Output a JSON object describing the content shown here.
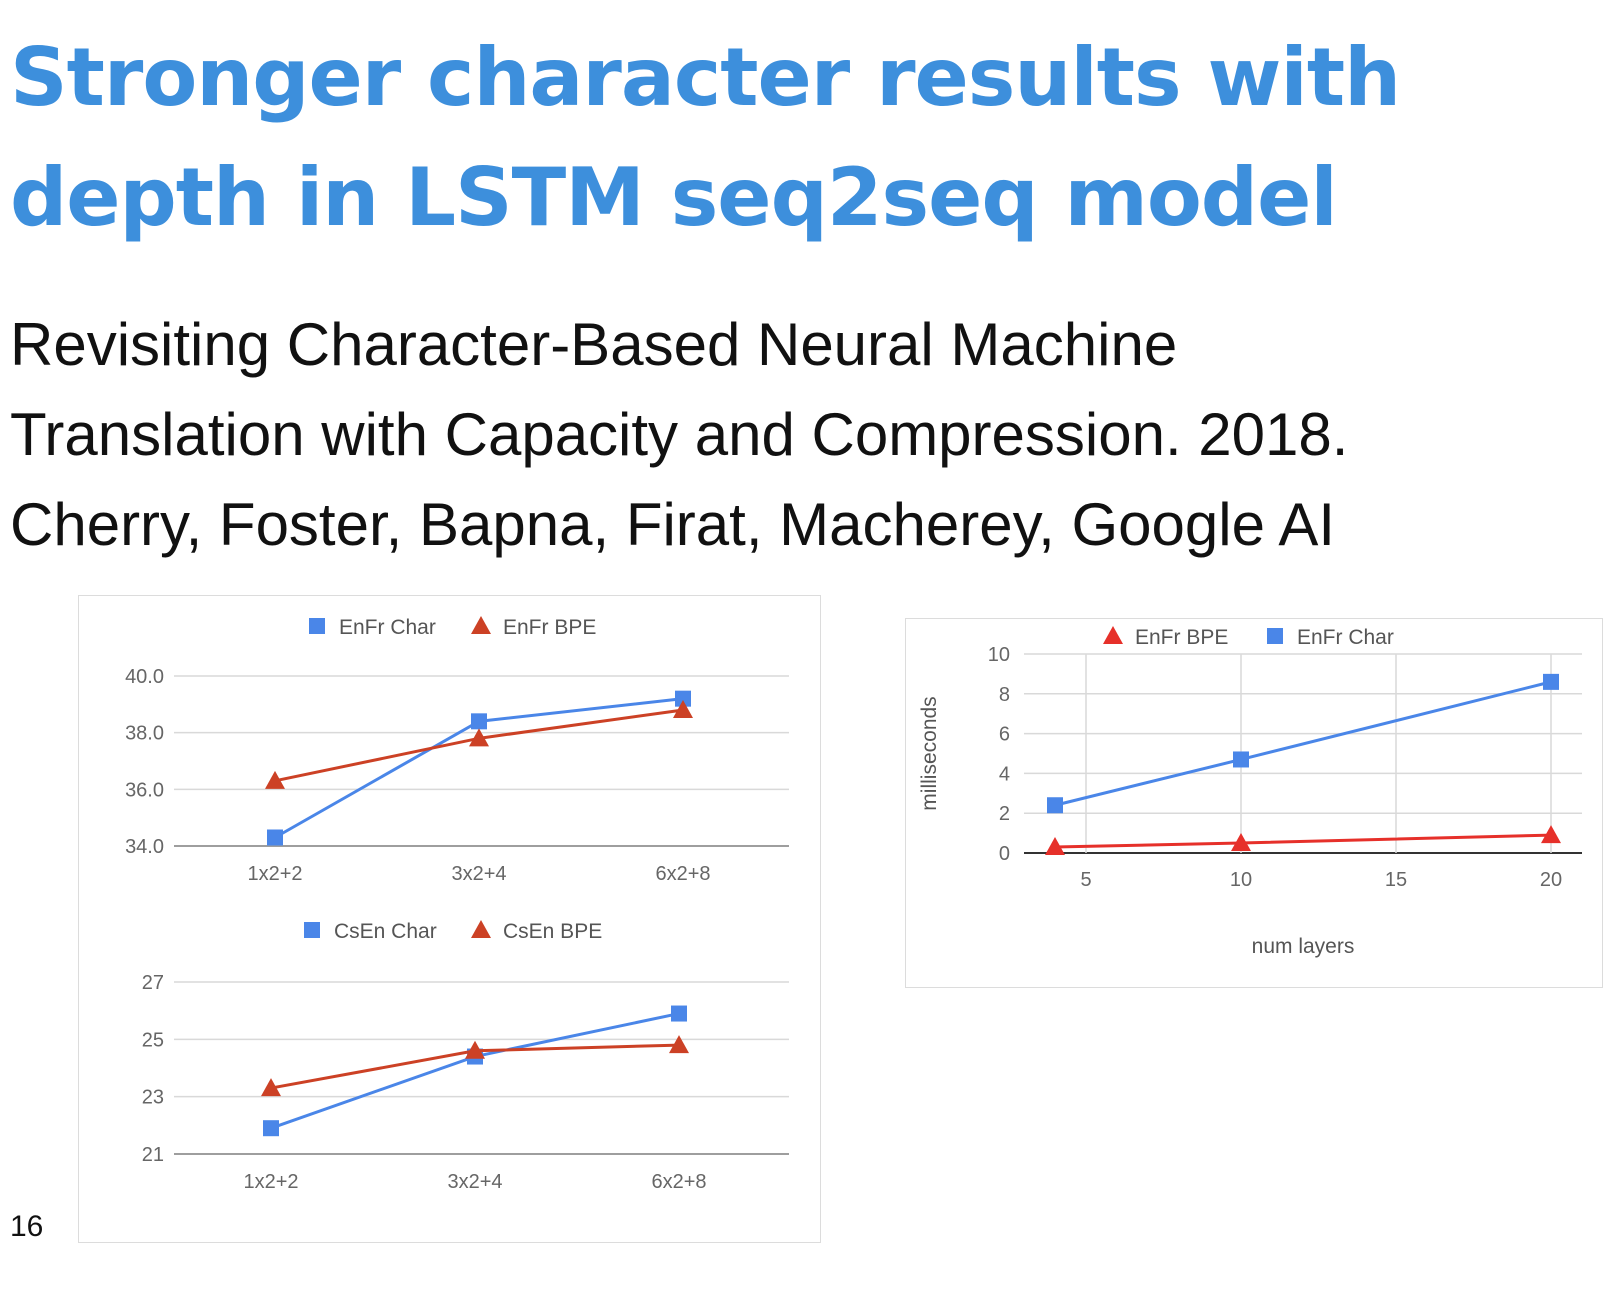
{
  "slide": {
    "title_lines": [
      "Stronger character results with",
      "depth in LSTM seq2seq model"
    ],
    "subtitle_lines": [
      "Revisiting Character-Based Neural Machine",
      "Translation with Capacity and Compression. 2018.",
      "Cherry, Foster, Bapna, Firat, Macherey, Google AI"
    ],
    "page_number": "16"
  },
  "colors": {
    "title": "#3d8fdc",
    "series_blue": "#4a86e8",
    "series_red": "#cc4125",
    "series_red_bright": "#e6302a",
    "grid": "#d9d9d9"
  },
  "chart_data": [
    {
      "type": "line",
      "categories": [
        "1x2+2",
        "3x2+4",
        "6x2+8"
      ],
      "ylim": [
        34,
        40
      ],
      "yticks": [
        "34.0",
        "36.0",
        "38.0",
        "40.0"
      ],
      "legend_position": "top",
      "grid": true,
      "series": [
        {
          "name": "EnFr Char",
          "marker": "square",
          "values": [
            34.3,
            38.4,
            39.2
          ]
        },
        {
          "name": "EnFr BPE",
          "marker": "triangle",
          "values": [
            36.3,
            37.8,
            38.8
          ]
        }
      ]
    },
    {
      "type": "line",
      "categories": [
        "1x2+2",
        "3x2+4",
        "6x2+8"
      ],
      "ylim": [
        21,
        27
      ],
      "yticks": [
        "21",
        "23",
        "25",
        "27"
      ],
      "legend_position": "top",
      "grid": true,
      "series": [
        {
          "name": "CsEn Char",
          "marker": "square",
          "values": [
            21.9,
            24.4,
            25.9
          ]
        },
        {
          "name": "CsEn BPE",
          "marker": "triangle",
          "values": [
            23.3,
            24.6,
            24.8
          ]
        }
      ]
    },
    {
      "type": "line",
      "xlabel": "num layers",
      "ylabel": "milliseconds",
      "xlim": [
        3,
        21
      ],
      "ylim": [
        0,
        10
      ],
      "xticks": [
        "5",
        "10",
        "15",
        "20"
      ],
      "yticks": [
        "0",
        "2",
        "4",
        "6",
        "8",
        "10"
      ],
      "legend_position": "top",
      "grid": true,
      "series": [
        {
          "name": "EnFr BPE",
          "marker": "triangle",
          "x": [
            4,
            10,
            20
          ],
          "values": [
            0.3,
            0.5,
            0.9
          ]
        },
        {
          "name": "EnFr Char",
          "marker": "square",
          "x": [
            4,
            10,
            20
          ],
          "values": [
            2.4,
            4.7,
            8.6
          ]
        }
      ]
    }
  ]
}
